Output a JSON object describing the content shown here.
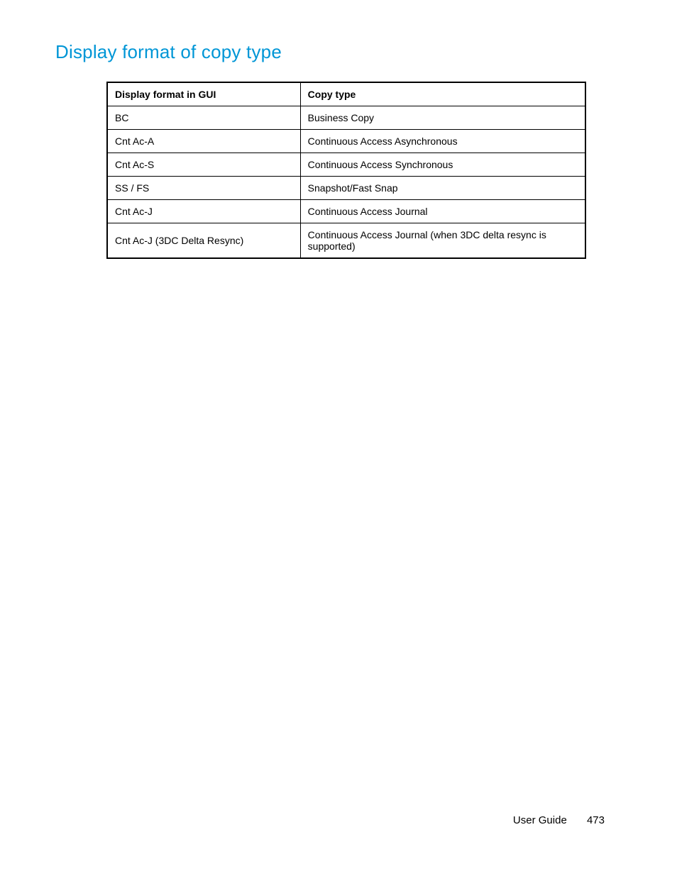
{
  "heading": "Display format of copy type",
  "table": {
    "columns": [
      "Display format in GUI",
      "Copy type"
    ],
    "rows": [
      [
        "BC",
        "Business Copy"
      ],
      [
        "Cnt Ac-A",
        "Continuous Access Asynchronous"
      ],
      [
        "Cnt Ac-S",
        "Continuous Access Synchronous"
      ],
      [
        "SS / FS",
        "Snapshot/Fast Snap"
      ],
      [
        "Cnt Ac-J",
        "Continuous Access Journal"
      ],
      [
        "Cnt Ac-J (3DC Delta Resync)",
        "Continuous Access Journal (when 3DC delta resync is supported)"
      ]
    ]
  },
  "footer": {
    "label": "User Guide",
    "page": "473"
  }
}
